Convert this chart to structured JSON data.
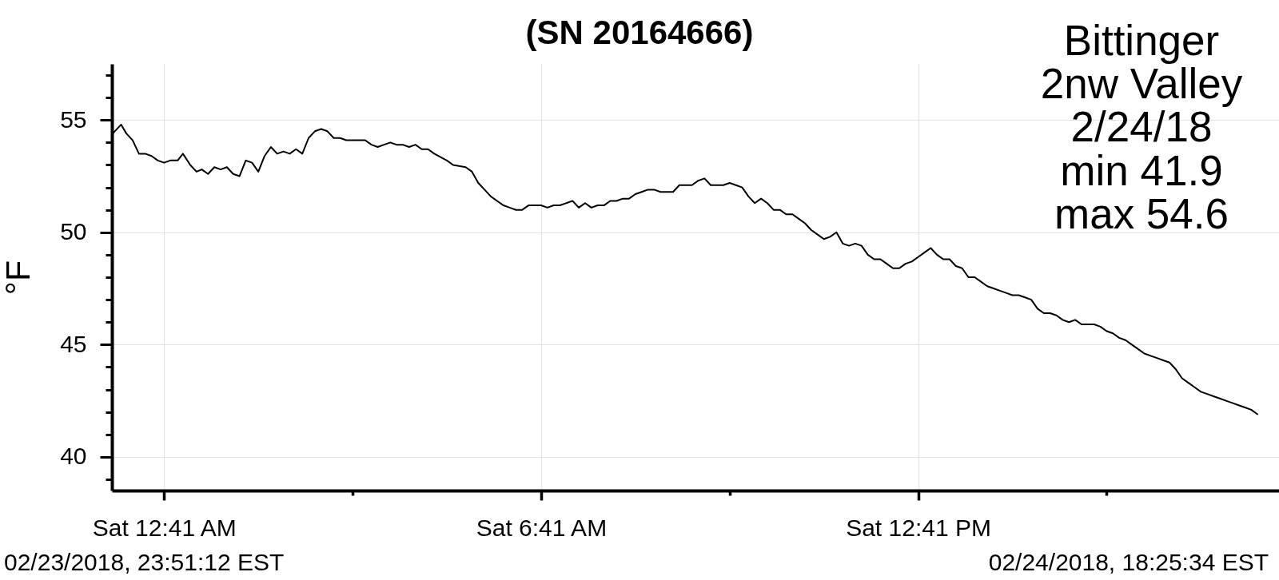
{
  "chart_data": {
    "type": "line",
    "title": "(SN 20164666)",
    "ylabel": "°F",
    "annotations": [
      "Bittinger",
      "2nw Valley",
      "2/24/18",
      "min 41.9",
      "max 54.6",
      "02/23/2018, 23:51:12 EST",
      "02/24/2018, 18:25:34 EST"
    ],
    "x": [
      "2018-02-23T23:52",
      "2018-02-24T00:00",
      "2018-02-24T00:05",
      "2018-02-24T00:11",
      "2018-02-24T00:17",
      "2018-02-24T00:23",
      "2018-02-24T00:29",
      "2018-02-24T00:35",
      "2018-02-24T00:41",
      "2018-02-24T00:47",
      "2018-02-24T00:54",
      "2018-02-24T00:59",
      "2018-02-24T01:06",
      "2018-02-24T01:12",
      "2018-02-24T01:17",
      "2018-02-24T01:23",
      "2018-02-24T01:29",
      "2018-02-24T01:35",
      "2018-02-24T01:41",
      "2018-02-24T01:47",
      "2018-02-24T01:53",
      "2018-02-24T01:59",
      "2018-02-24T02:05",
      "2018-02-24T02:11",
      "2018-02-24T02:17",
      "2018-02-24T02:23",
      "2018-02-24T02:29",
      "2018-02-24T02:35",
      "2018-02-24T02:41",
      "2018-02-24T02:47",
      "2018-02-24T02:53",
      "2018-02-24T02:59",
      "2018-02-24T03:05",
      "2018-02-24T03:11",
      "2018-02-24T03:17",
      "2018-02-24T03:23",
      "2018-02-24T03:29",
      "2018-02-24T03:35",
      "2018-02-24T03:53",
      "2018-02-24T03:59",
      "2018-02-24T04:05",
      "2018-02-24T04:11",
      "2018-02-24T04:17",
      "2018-02-24T04:23",
      "2018-02-24T04:29",
      "2018-02-24T04:35",
      "2018-02-24T04:41",
      "2018-02-24T04:47",
      "2018-02-24T04:53",
      "2018-02-24T04:59",
      "2018-02-24T05:11",
      "2018-02-24T05:17",
      "2018-02-24T05:29",
      "2018-02-24T05:35",
      "2018-02-24T05:41",
      "2018-02-24T05:47",
      "2018-02-24T05:53",
      "2018-02-24T05:59",
      "2018-02-24T06:05",
      "2018-02-24T06:11",
      "2018-02-24T06:17",
      "2018-02-24T06:23",
      "2018-02-24T06:29",
      "2018-02-24T06:41",
      "2018-02-24T06:47",
      "2018-02-24T06:53",
      "2018-02-24T06:59",
      "2018-02-24T07:11",
      "2018-02-24T07:17",
      "2018-02-24T07:23",
      "2018-02-24T07:29",
      "2018-02-24T07:35",
      "2018-02-24T07:41",
      "2018-02-24T07:47",
      "2018-02-24T07:53",
      "2018-02-24T07:59",
      "2018-02-24T08:05",
      "2018-02-24T08:11",
      "2018-02-24T08:17",
      "2018-02-24T08:23",
      "2018-02-24T08:29",
      "2018-02-24T08:35",
      "2018-02-24T08:47",
      "2018-02-24T08:53",
      "2018-02-24T09:05",
      "2018-02-24T09:11",
      "2018-02-24T09:17",
      "2018-02-24T09:23",
      "2018-02-24T09:29",
      "2018-02-24T09:35",
      "2018-02-24T09:41",
      "2018-02-24T09:47",
      "2018-02-24T09:53",
      "2018-02-24T09:59",
      "2018-02-24T10:05",
      "2018-02-24T10:11",
      "2018-02-24T10:17",
      "2018-02-24T10:23",
      "2018-02-24T10:29",
      "2018-02-24T10:35",
      "2018-02-24T10:41",
      "2018-02-24T10:47",
      "2018-02-24T10:53",
      "2018-02-24T10:59",
      "2018-02-24T11:05",
      "2018-02-24T11:11",
      "2018-02-24T11:17",
      "2018-02-24T11:23",
      "2018-02-24T11:29",
      "2018-02-24T11:35",
      "2018-02-24T11:41",
      "2018-02-24T11:47",
      "2018-02-24T11:53",
      "2018-02-24T11:59",
      "2018-02-24T12:05",
      "2018-02-24T12:11",
      "2018-02-24T12:17",
      "2018-02-24T12:23",
      "2018-02-24T12:29",
      "2018-02-24T12:35",
      "2018-02-24T12:41",
      "2018-02-24T12:47",
      "2018-02-24T12:53",
      "2018-02-24T12:59",
      "2018-02-24T13:05",
      "2018-02-24T13:11",
      "2018-02-24T13:17",
      "2018-02-24T13:23",
      "2018-02-24T13:29",
      "2018-02-24T13:35",
      "2018-02-24T13:41",
      "2018-02-24T13:47",
      "2018-02-24T13:53",
      "2018-02-24T13:59",
      "2018-02-24T14:05",
      "2018-02-24T14:11",
      "2018-02-24T14:17",
      "2018-02-24T14:23",
      "2018-02-24T14:29",
      "2018-02-24T14:35",
      "2018-02-24T14:41",
      "2018-02-24T14:47",
      "2018-02-24T14:53",
      "2018-02-24T14:59",
      "2018-02-24T15:05",
      "2018-02-24T15:11",
      "2018-02-24T15:17",
      "2018-02-24T15:29",
      "2018-02-24T15:35",
      "2018-02-24T15:41",
      "2018-02-24T15:47",
      "2018-02-24T15:53",
      "2018-02-24T15:59",
      "2018-02-24T16:05",
      "2018-02-24T16:11",
      "2018-02-24T16:17",
      "2018-02-24T16:23",
      "2018-02-24T16:29",
      "2018-02-24T16:35",
      "2018-02-24T16:41",
      "2018-02-24T16:47",
      "2018-02-24T16:53",
      "2018-02-24T16:59",
      "2018-02-24T17:05",
      "2018-02-24T17:11",
      "2018-02-24T17:17",
      "2018-02-24T17:23",
      "2018-02-24T17:29",
      "2018-02-24T17:35",
      "2018-02-24T17:41",
      "2018-02-24T17:47",
      "2018-02-24T17:53",
      "2018-02-24T17:59",
      "2018-02-24T18:05"
    ],
    "series": [
      {
        "color": "#000000",
        "values": [
          54.4,
          54.8,
          54.4,
          54.1,
          53.5,
          53.5,
          53.4,
          53.2,
          53.1,
          53.2,
          53.2,
          53.5,
          53.0,
          52.7,
          52.8,
          52.6,
          52.9,
          52.8,
          52.9,
          52.6,
          52.5,
          53.2,
          53.1,
          52.7,
          53.4,
          53.8,
          53.5,
          53.6,
          53.5,
          53.7,
          53.5,
          54.2,
          54.5,
          54.6,
          54.5,
          54.2,
          54.2,
          54.1,
          54.1,
          53.9,
          53.8,
          53.9,
          54.0,
          53.9,
          53.9,
          53.8,
          53.9,
          53.7,
          53.7,
          53.5,
          53.2,
          53.0,
          52.9,
          52.7,
          52.2,
          51.9,
          51.6,
          51.4,
          51.2,
          51.1,
          51.0,
          51.0,
          51.2,
          51.2,
          51.1,
          51.2,
          51.2,
          51.4,
          51.1,
          51.3,
          51.1,
          51.2,
          51.2,
          51.4,
          51.4,
          51.5,
          51.5,
          51.7,
          51.8,
          51.9,
          51.9,
          51.8,
          51.8,
          52.1,
          52.1,
          52.3,
          52.4,
          52.1,
          52.1,
          52.1,
          52.2,
          52.1,
          52.0,
          51.6,
          51.3,
          51.5,
          51.3,
          51.0,
          51.0,
          50.8,
          50.8,
          50.6,
          50.4,
          50.1,
          49.9,
          49.7,
          49.8,
          50.0,
          49.5,
          49.4,
          49.5,
          49.4,
          49.0,
          48.8,
          48.8,
          48.6,
          48.4,
          48.4,
          48.6,
          48.7,
          48.9,
          49.1,
          49.3,
          49.0,
          48.8,
          48.8,
          48.5,
          48.4,
          48.0,
          48.0,
          47.8,
          47.6,
          47.5,
          47.4,
          47.3,
          47.2,
          47.2,
          47.1,
          47.0,
          46.6,
          46.4,
          46.4,
          46.3,
          46.1,
          46.0,
          46.1,
          45.9,
          45.9,
          45.8,
          45.6,
          45.5,
          45.3,
          45.2,
          45.0,
          44.8,
          44.6,
          44.5,
          44.4,
          44.3,
          44.2,
          43.9,
          43.5,
          43.3,
          43.1,
          42.9,
          42.8,
          42.7,
          42.6,
          42.5,
          42.4,
          42.3,
          42.2,
          42.1,
          41.9
        ]
      }
    ],
    "xlim": [
      "2018-02-23T23:51:12",
      "2018-02-24T18:25:34"
    ],
    "xticks": [
      {
        "value": "2018-02-24T00:41",
        "label": "Sat 12:41 AM"
      },
      {
        "value": "2018-02-24T03:41",
        "label": null
      },
      {
        "value": "2018-02-24T06:41",
        "label": "Sat 6:41 AM"
      },
      {
        "value": "2018-02-24T09:41",
        "label": null
      },
      {
        "value": "2018-02-24T12:41",
        "label": "Sat 12:41 PM"
      },
      {
        "value": "2018-02-24T15:41",
        "label": null
      }
    ],
    "ylim": [
      38.5,
      57.5
    ],
    "yticks": [
      {
        "value": 39,
        "label": null
      },
      40,
      {
        "value": 41,
        "label": null
      },
      {
        "value": 42,
        "label": null
      },
      {
        "value": 43,
        "label": null
      },
      {
        "value": 44,
        "label": null
      },
      45,
      {
        "value": 46,
        "label": null
      },
      {
        "value": 47,
        "label": null
      },
      {
        "value": 48,
        "label": null
      },
      {
        "value": 49,
        "label": null
      },
      50,
      {
        "value": 51,
        "label": null
      },
      {
        "value": 52,
        "label": null
      },
      {
        "value": 53,
        "label": null
      },
      {
        "value": 54,
        "label": null
      },
      55,
      {
        "value": 56,
        "label": null
      },
      {
        "value": 57,
        "label": null
      }
    ],
    "grid": true
  }
}
